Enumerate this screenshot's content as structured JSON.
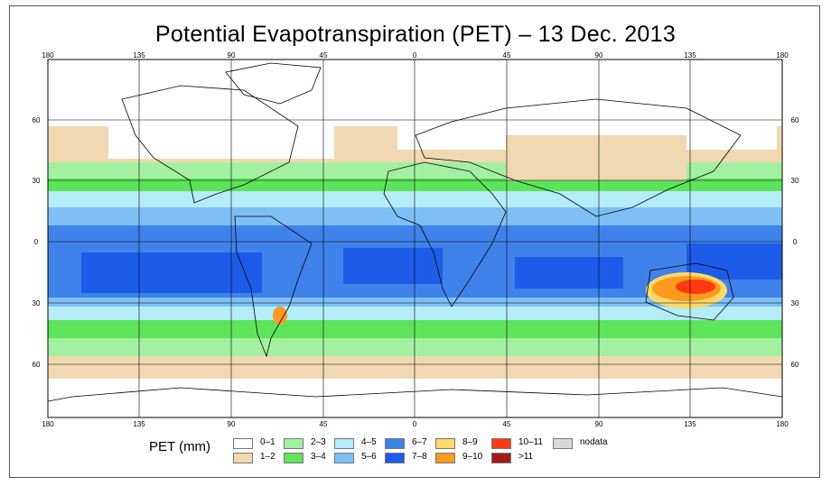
{
  "title": "Potential Evapotranspiration (PET) – 13 Dec. 2013",
  "map": {
    "lon_labels": [
      "180",
      "135",
      "90",
      "45",
      "0",
      "45",
      "90",
      "135",
      "180"
    ],
    "lat_labels": [
      "60",
      "30",
      "0",
      "30",
      "60"
    ],
    "lon_range": [
      -180,
      180
    ],
    "lat_range": [
      -90,
      90
    ]
  },
  "legend": {
    "title": "PET (mm)",
    "classes": [
      {
        "label": "0–1",
        "color": "#ffffff"
      },
      {
        "label": "1–2",
        "color": "#f0d9b0"
      },
      {
        "label": "2–3",
        "color": "#a3f0a0"
      },
      {
        "label": "3–4",
        "color": "#5ee45a"
      },
      {
        "label": "4–5",
        "color": "#b4ecf8"
      },
      {
        "label": "5–6",
        "color": "#7ec0f5"
      },
      {
        "label": "6–7",
        "color": "#3f82ea"
      },
      {
        "label": "7–8",
        "color": "#1c5ce8"
      },
      {
        "label": "8–9",
        "color": "#ffd86a"
      },
      {
        "label": "9–10",
        "color": "#ff9a1e"
      },
      {
        "label": "10–11",
        "color": "#ff3a10"
      },
      {
        "label": ">11",
        "color": "#a61a1a"
      },
      {
        "label": "nodata",
        "color": "#d9d9d9"
      }
    ]
  }
}
